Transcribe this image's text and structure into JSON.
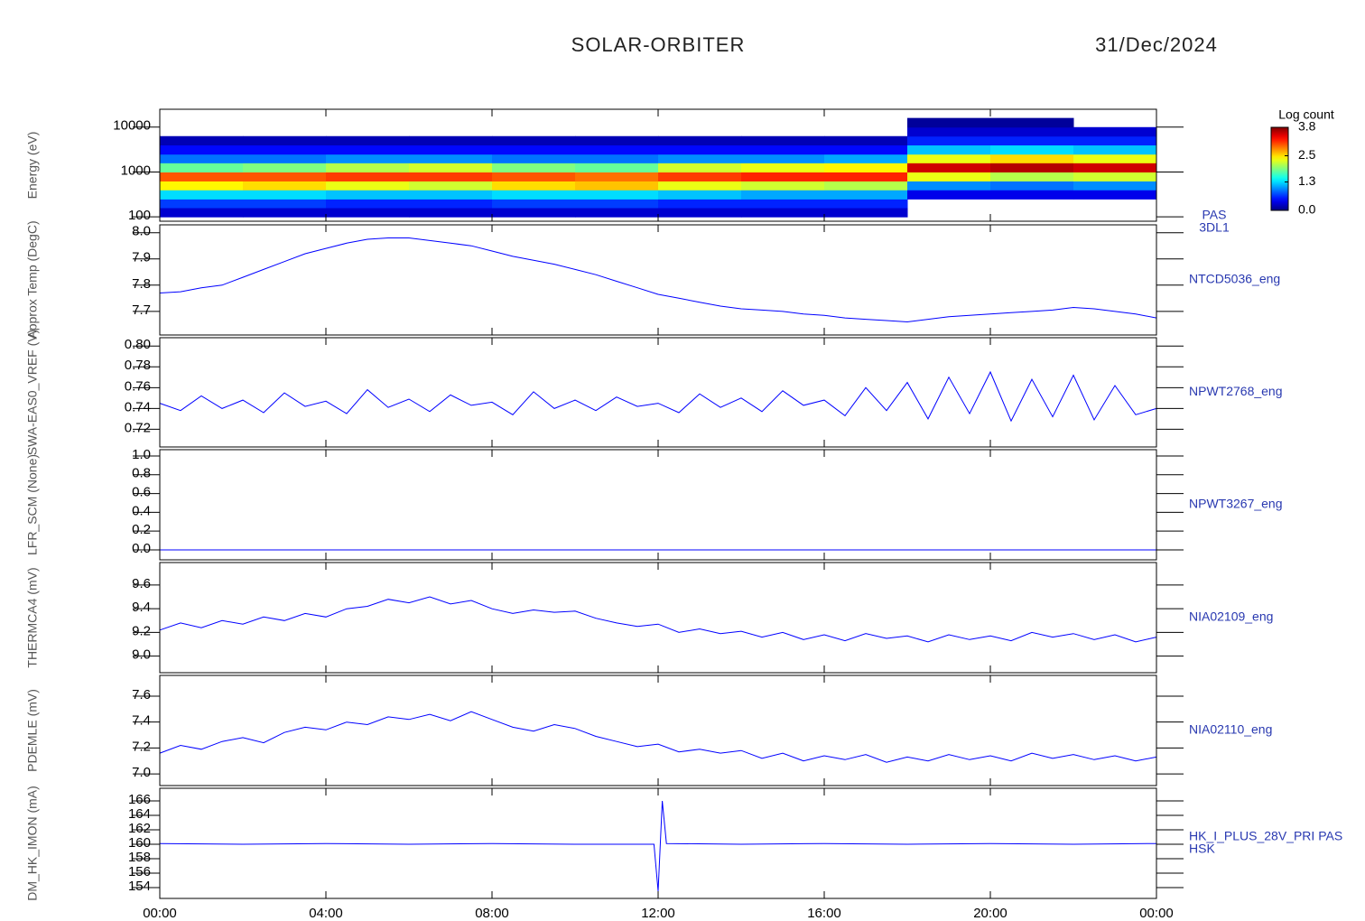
{
  "header": {
    "title": "SOLAR-ORBITER",
    "date": "31/Dec/2024"
  },
  "x_axis": {
    "xlim": [
      0,
      24
    ],
    "xticks": [
      {
        "value": 0,
        "label": "00:00"
      },
      {
        "value": 4,
        "label": "04:00"
      },
      {
        "value": 8,
        "label": "08:00"
      },
      {
        "value": 12,
        "label": "12:00"
      },
      {
        "value": 16,
        "label": "16:00"
      },
      {
        "value": 20,
        "label": "20:00"
      },
      {
        "value": 24,
        "label": "00:00"
      }
    ],
    "x": [
      0,
      0.5,
      1,
      1.5,
      2,
      2.5,
      3,
      3.5,
      4,
      4.5,
      5,
      5.5,
      6,
      6.5,
      7,
      7.5,
      8,
      8.5,
      9,
      9.5,
      10,
      10.5,
      11,
      11.5,
      12,
      12.5,
      13,
      13.5,
      14,
      14.5,
      15,
      15.5,
      16,
      16.5,
      17,
      17.5,
      18,
      18.5,
      19,
      19.5,
      20,
      20.5,
      21,
      21.5,
      22,
      22.5,
      23,
      23.5,
      24
    ]
  },
  "chart_data": [
    {
      "type": "heatmap",
      "ylabel": "Energy (eV)",
      "name": [
        "PAS",
        "3DL1"
      ],
      "log": true,
      "ylim": [
        80,
        25000
      ],
      "yticks": [
        100,
        1000,
        10000
      ],
      "x_bins": [
        0,
        2,
        4,
        6,
        8,
        10,
        12,
        14,
        16,
        18,
        20,
        22,
        24
      ],
      "y_bins": [
        100,
        160,
        250,
        400,
        630,
        1000,
        1600,
        2500,
        4000,
        6300,
        10000,
        16000
      ],
      "z": [
        [
          0.3,
          0.7,
          1.3,
          2.4,
          3.0,
          1.8,
          0.9,
          0.5,
          0.2,
          null,
          null
        ],
        [
          0.3,
          0.7,
          1.3,
          2.5,
          3.0,
          1.9,
          0.9,
          0.5,
          0.2,
          null,
          null
        ],
        [
          0.3,
          0.6,
          1.2,
          2.3,
          3.1,
          2.1,
          1.0,
          0.5,
          0.2,
          null,
          null
        ],
        [
          0.3,
          0.6,
          1.2,
          2.2,
          3.1,
          2.2,
          1.0,
          0.5,
          0.2,
          null,
          null
        ],
        [
          0.3,
          0.7,
          1.3,
          2.5,
          3.0,
          1.9,
          0.9,
          0.5,
          0.2,
          null,
          null
        ],
        [
          0.3,
          0.7,
          1.3,
          2.6,
          2.9,
          1.8,
          0.9,
          0.5,
          0.2,
          null,
          null
        ],
        [
          0.3,
          0.6,
          1.2,
          2.3,
          3.1,
          2.2,
          1.0,
          0.5,
          0.2,
          null,
          null
        ],
        [
          0.3,
          0.6,
          1.1,
          2.2,
          3.2,
          2.3,
          1.0,
          0.5,
          0.2,
          null,
          null
        ],
        [
          0.3,
          0.6,
          1.1,
          2.1,
          3.2,
          2.4,
          1.1,
          0.5,
          0.2,
          null,
          null
        ],
        [
          null,
          null,
          0.4,
          1.0,
          2.3,
          3.5,
          2.3,
          1.2,
          0.6,
          0.3,
          0.1
        ],
        [
          null,
          null,
          0.4,
          0.9,
          2.1,
          3.6,
          2.5,
          1.3,
          0.6,
          0.3,
          0.1
        ],
        [
          null,
          null,
          0.4,
          1.0,
          2.2,
          3.5,
          2.3,
          1.2,
          0.6,
          0.3,
          null
        ]
      ],
      "colorbar": {
        "label": "Log count",
        "clim": [
          0,
          3.8
        ],
        "cticks": [
          {
            "value": 0,
            "label": "0.0"
          },
          1.3,
          2.5,
          3.8
        ]
      }
    },
    {
      "type": "line",
      "ylabel": "Approx Temp (DegC)",
      "name": [
        "NTCD5036_eng"
      ],
      "color": "#0000ff",
      "ylim": [
        7.61,
        8.03
      ],
      "yticks": [
        {
          "value": 8,
          "label": "8.0"
        },
        7.9,
        7.8,
        7.7
      ],
      "values": [
        7.77,
        7.775,
        7.79,
        7.8,
        7.83,
        7.86,
        7.89,
        7.92,
        7.94,
        7.96,
        7.975,
        7.98,
        7.98,
        7.97,
        7.96,
        7.95,
        7.93,
        7.91,
        7.895,
        7.88,
        7.86,
        7.84,
        7.815,
        7.79,
        7.765,
        7.75,
        7.735,
        7.72,
        7.71,
        7.705,
        7.7,
        7.69,
        7.685,
        7.675,
        7.67,
        7.665,
        7.66,
        7.67,
        7.68,
        7.685,
        7.69,
        7.695,
        7.7,
        7.705,
        7.715,
        7.71,
        7.7,
        7.69,
        7.675
      ]
    },
    {
      "type": "line",
      "ylabel": "SWA-EAS0_VREF (V)",
      "name": [
        "NPWT2768_eng"
      ],
      "color": "#0000ff",
      "ylim": [
        0.703,
        0.808
      ],
      "yticks": [
        {
          "value": 0.8,
          "label": "0.80"
        },
        {
          "value": 0.78,
          "label": "0.78"
        },
        {
          "value": 0.76,
          "label": "0.76"
        },
        {
          "value": 0.74,
          "label": "0.74"
        },
        {
          "value": 0.72,
          "label": "0.72"
        }
      ],
      "values": [
        0.745,
        0.738,
        0.752,
        0.74,
        0.748,
        0.736,
        0.755,
        0.742,
        0.747,
        0.735,
        0.758,
        0.741,
        0.749,
        0.737,
        0.753,
        0.743,
        0.746,
        0.734,
        0.756,
        0.74,
        0.748,
        0.738,
        0.751,
        0.742,
        0.745,
        0.736,
        0.754,
        0.741,
        0.75,
        0.737,
        0.757,
        0.743,
        0.748,
        0.733,
        0.76,
        0.738,
        0.765,
        0.73,
        0.77,
        0.735,
        0.775,
        0.728,
        0.768,
        0.732,
        0.772,
        0.729,
        0.762,
        0.734,
        0.74
      ]
    },
    {
      "type": "line",
      "ylabel": "LFR_SCM (None)",
      "name": [
        "NPWT3267_eng"
      ],
      "color": "#0000ff",
      "ylim": [
        -0.106,
        1.067
      ],
      "yticks": [
        {
          "value": 1,
          "label": "1.0"
        },
        0.8,
        0.6,
        0.4,
        0.2,
        {
          "value": 0,
          "label": "0.0"
        }
      ],
      "values": [
        0,
        0,
        0,
        0,
        0,
        0,
        0,
        0,
        0,
        0,
        0,
        0,
        0,
        0,
        0,
        0,
        0,
        0,
        0,
        0,
        0,
        0,
        0,
        0,
        0,
        0,
        0,
        0,
        0,
        0,
        0,
        0,
        0,
        0,
        0,
        0,
        0,
        0,
        0,
        0,
        0,
        0,
        0,
        0,
        0,
        0,
        0,
        0,
        0
      ]
    },
    {
      "type": "line",
      "ylabel": "THERMCA4 (mV)",
      "name": [
        "NIA02109_eng"
      ],
      "color": "#0000ff",
      "ylim": [
        8.86,
        9.79
      ],
      "yticks": [
        9.6,
        9.4,
        9.2,
        {
          "value": 9,
          "label": "9.0"
        }
      ],
      "values": [
        9.22,
        9.28,
        9.24,
        9.3,
        9.27,
        9.33,
        9.3,
        9.36,
        9.33,
        9.4,
        9.42,
        9.48,
        9.45,
        9.5,
        9.44,
        9.47,
        9.4,
        9.36,
        9.39,
        9.37,
        9.38,
        9.32,
        9.28,
        9.25,
        9.27,
        9.2,
        9.23,
        9.19,
        9.21,
        9.16,
        9.2,
        9.14,
        9.18,
        9.13,
        9.19,
        9.15,
        9.17,
        9.12,
        9.18,
        9.14,
        9.17,
        9.13,
        9.2,
        9.16,
        9.19,
        9.14,
        9.18,
        9.12,
        9.16
      ]
    },
    {
      "type": "line",
      "ylabel": "PDEMLE (mV)",
      "name": [
        "NIA02110_eng"
      ],
      "color": "#0000ff",
      "ylim": [
        6.91,
        7.76
      ],
      "yticks": [
        7.6,
        7.4,
        7.2,
        {
          "value": 7,
          "label": "7.0"
        }
      ],
      "values": [
        7.16,
        7.22,
        7.19,
        7.25,
        7.28,
        7.24,
        7.32,
        7.36,
        7.34,
        7.4,
        7.38,
        7.44,
        7.42,
        7.46,
        7.41,
        7.48,
        7.42,
        7.36,
        7.33,
        7.38,
        7.35,
        7.29,
        7.25,
        7.21,
        7.23,
        7.17,
        7.19,
        7.16,
        7.18,
        7.12,
        7.16,
        7.1,
        7.14,
        7.11,
        7.15,
        7.09,
        7.13,
        7.1,
        7.15,
        7.11,
        7.14,
        7.1,
        7.16,
        7.12,
        7.15,
        7.11,
        7.14,
        7.1,
        7.13
      ]
    },
    {
      "type": "line",
      "ylabel": "DM_HK_IMON (mA)",
      "name": [
        "HK_I_PLUS_28V_PRI PAS",
        "HSK"
      ],
      "color": "#0000ff",
      "ylim": [
        152.5,
        167.75
      ],
      "yticks": [
        166,
        164,
        162,
        160,
        158,
        156,
        154
      ],
      "x": [
        0,
        2,
        4,
        6,
        8,
        10,
        11.9,
        12,
        12.1,
        12.2,
        14,
        16,
        18,
        20,
        22,
        24
      ],
      "values": [
        160.1,
        160.0,
        160.1,
        160.0,
        160.1,
        160.0,
        160.0,
        153.5,
        166.0,
        160.1,
        160.0,
        160.1,
        160.0,
        160.1,
        160.0,
        160.1
      ]
    }
  ]
}
